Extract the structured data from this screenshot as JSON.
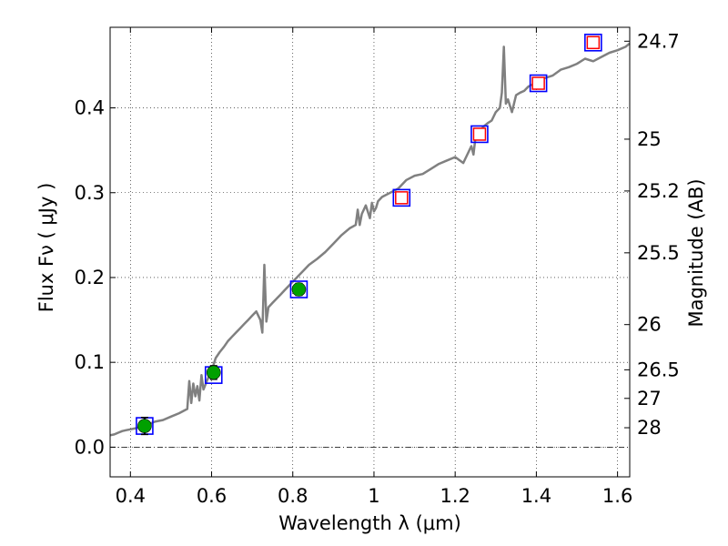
{
  "chart_data": {
    "type": "scatter",
    "title": "",
    "xlabel": "Wavelength  λ (μm)",
    "ylabel": "Flux  Fν  ( μJy )",
    "y2label": "Magnitude (AB)",
    "xlim": [
      0.35,
      1.63
    ],
    "ylim": [
      -0.035,
      0.495
    ],
    "grid": true,
    "legend": "none",
    "x_ticks": [
      0.4,
      0.6,
      0.8,
      1.0,
      1.2,
      1.4,
      1.6
    ],
    "x_tick_labels": [
      "0.4",
      "0.6",
      "0.8",
      "1",
      "1.2",
      "1.4",
      "1.6"
    ],
    "y_ticks": [
      0.0,
      0.1,
      0.2,
      0.3,
      0.4
    ],
    "y_tick_labels": [
      "0.0",
      "0.1",
      "0.2",
      "0.3",
      "0.4"
    ],
    "magnitude_ticks": [
      {
        "label": "24.7",
        "flux": 0.4786
      },
      {
        "label": "25",
        "flux": 0.3631
      },
      {
        "label": "25.2",
        "flux": 0.302
      },
      {
        "label": "25.5",
        "flux": 0.2291
      },
      {
        "label": "26",
        "flux": 0.1445
      },
      {
        "label": "26.5",
        "flux": 0.0912
      },
      {
        "label": "27",
        "flux": 0.0575
      },
      {
        "label": "28",
        "flux": 0.0229
      }
    ],
    "series": [
      {
        "kind": "spectrum",
        "color": "#808080",
        "x": [
          0.35,
          0.36,
          0.37,
          0.38,
          0.39,
          0.4,
          0.41,
          0.42,
          0.43,
          0.44,
          0.45,
          0.46,
          0.47,
          0.48,
          0.5,
          0.52,
          0.54,
          0.545,
          0.55,
          0.555,
          0.56,
          0.565,
          0.57,
          0.575,
          0.58,
          0.59,
          0.6,
          0.61,
          0.62,
          0.63,
          0.64,
          0.65,
          0.66,
          0.67,
          0.68,
          0.69,
          0.7,
          0.71,
          0.72,
          0.725,
          0.73,
          0.735,
          0.74,
          0.75,
          0.76,
          0.77,
          0.78,
          0.8,
          0.82,
          0.84,
          0.86,
          0.88,
          0.9,
          0.92,
          0.94,
          0.955,
          0.96,
          0.965,
          0.97,
          0.98,
          0.99,
          0.995,
          1.0,
          1.005,
          1.01,
          1.02,
          1.04,
          1.06,
          1.08,
          1.1,
          1.12,
          1.14,
          1.16,
          1.18,
          1.2,
          1.22,
          1.24,
          1.245,
          1.25,
          1.26,
          1.27,
          1.28,
          1.29,
          1.3,
          1.31,
          1.315,
          1.32,
          1.325,
          1.33,
          1.34,
          1.35,
          1.36,
          1.37,
          1.38,
          1.4,
          1.42,
          1.44,
          1.46,
          1.48,
          1.5,
          1.52,
          1.54,
          1.56,
          1.58,
          1.6,
          1.62,
          1.63
        ],
        "y": [
          0.014,
          0.015,
          0.017,
          0.019,
          0.02,
          0.021,
          0.022,
          0.023,
          0.025,
          0.027,
          0.028,
          0.03,
          0.031,
          0.032,
          0.036,
          0.04,
          0.045,
          0.078,
          0.052,
          0.075,
          0.06,
          0.072,
          0.055,
          0.085,
          0.068,
          0.08,
          0.09,
          0.105,
          0.112,
          0.118,
          0.125,
          0.13,
          0.135,
          0.14,
          0.145,
          0.15,
          0.155,
          0.16,
          0.15,
          0.135,
          0.215,
          0.148,
          0.165,
          0.17,
          0.175,
          0.18,
          0.185,
          0.195,
          0.205,
          0.215,
          0.222,
          0.23,
          0.24,
          0.25,
          0.258,
          0.262,
          0.28,
          0.262,
          0.275,
          0.285,
          0.27,
          0.288,
          0.278,
          0.282,
          0.29,
          0.295,
          0.3,
          0.305,
          0.315,
          0.32,
          0.322,
          0.328,
          0.334,
          0.338,
          0.342,
          0.335,
          0.355,
          0.345,
          0.365,
          0.372,
          0.378,
          0.382,
          0.385,
          0.395,
          0.4,
          0.418,
          0.472,
          0.405,
          0.41,
          0.395,
          0.415,
          0.418,
          0.42,
          0.425,
          0.43,
          0.435,
          0.438,
          0.445,
          0.448,
          0.452,
          0.458,
          0.455,
          0.46,
          0.465,
          0.468,
          0.472,
          0.476
        ]
      },
      {
        "kind": "photometry",
        "marker": "square",
        "edge_color": "#0000ff",
        "x": [
          0.435,
          0.605,
          0.815,
          1.068,
          1.26,
          1.405,
          1.54
        ],
        "y": [
          0.025,
          0.085,
          0.186,
          0.294,
          0.369,
          0.429,
          0.477
        ]
      },
      {
        "kind": "detections",
        "marker": "circle",
        "color": "#00a000",
        "x": [
          0.435,
          0.605,
          0.815
        ],
        "y": [
          0.025,
          0.088,
          0.186
        ],
        "yerr": [
          0.01,
          0.008,
          0.007
        ]
      },
      {
        "kind": "model",
        "marker": "square-open",
        "edge_color": "#ff0000",
        "x": [
          1.068,
          1.26,
          1.405,
          1.54
        ],
        "y": [
          0.294,
          0.369,
          0.429,
          0.477
        ]
      }
    ]
  }
}
